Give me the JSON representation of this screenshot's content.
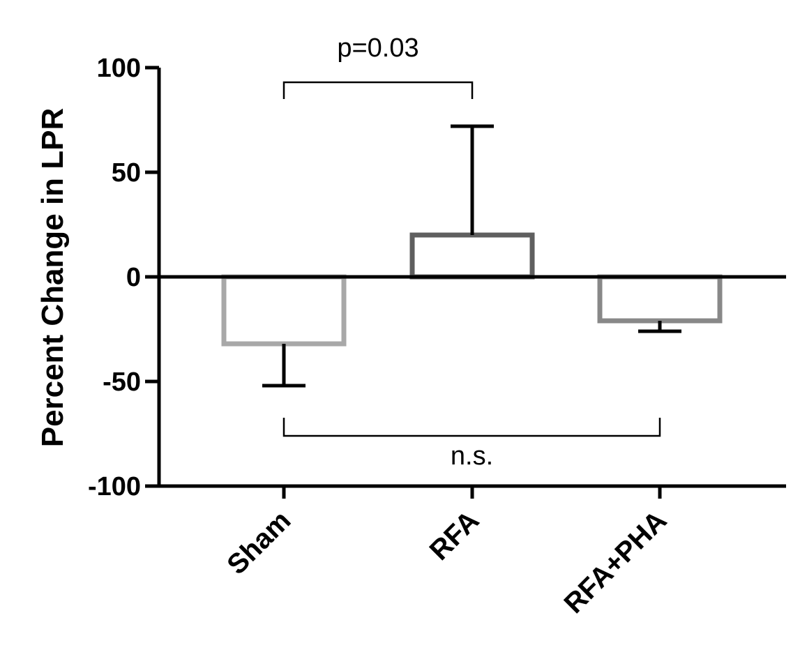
{
  "chart_data": {
    "type": "bar",
    "title": "",
    "xlabel": "",
    "ylabel": "Percent Change in LPR",
    "ylim": [
      -100,
      100
    ],
    "yticks": [
      100,
      50,
      0,
      -50,
      -100
    ],
    "categories": [
      "Sham",
      "RFA",
      "RFA+PHA"
    ],
    "values": [
      -32,
      20,
      -21
    ],
    "error": [
      20,
      52,
      5
    ],
    "bar_colors": [
      "#a8a8a8",
      "#5f5f5f",
      "#888888"
    ],
    "grid": false,
    "annotations": [
      {
        "text": "p=0.03",
        "from": "Sham",
        "to": "RFA",
        "position": "above",
        "y": 93
      },
      {
        "text": "n.s.",
        "from": "Sham",
        "to": "RFA+PHA",
        "position": "below",
        "y": -76
      }
    ]
  }
}
